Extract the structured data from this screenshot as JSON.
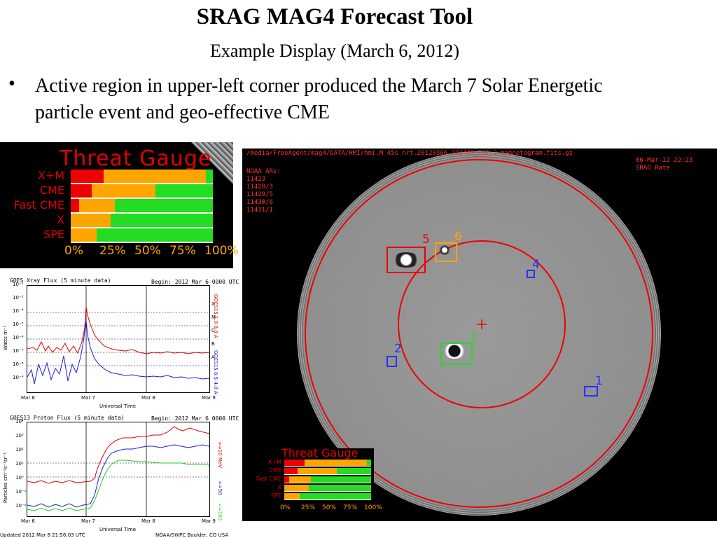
{
  "slide": {
    "title": "SRAG MAG4 Forecast Tool",
    "subtitle": "Example Display (March 6, 2012)",
    "bullet": "Active region in upper-left corner produced the March 7 Solar Energetic particle event and geo-effective CME"
  },
  "threat_gauge": {
    "title": "Threat Gauge",
    "rows": [
      {
        "label": "X+M",
        "red": 0.23,
        "orange": 0.72
      },
      {
        "label": "CME",
        "red": 0.15,
        "orange": 0.45
      },
      {
        "label": "Fast CME",
        "red": 0.06,
        "orange": 0.25
      },
      {
        "label": "X",
        "red": 0.0,
        "orange": 0.28
      },
      {
        "label": "SPE",
        "red": 0.0,
        "orange": 0.18
      }
    ],
    "ticks": [
      "0%",
      "25%",
      "50%",
      "75%",
      "100%"
    ],
    "colors": {
      "red": "#ee0000",
      "orange": "#ffa500",
      "green": "#22dd22"
    }
  },
  "xray_plot": {
    "title": "GOES Xray Flux (5 minute data)",
    "begin": "Begin:  2012 Mar  6 0000 UTC",
    "ylabel": "Watts m⁻²",
    "y_ticks": [
      "10⁻²",
      "10⁻³",
      "10⁻⁴",
      "10⁻⁵",
      "10⁻⁶",
      "10⁻⁷",
      "10⁻⁸",
      "10⁻⁹"
    ],
    "right_letters": [
      "X",
      "M",
      "C",
      "B",
      "A"
    ],
    "series_labels": [
      "GOES15 1.0-8.0 A",
      "GOES15 0.5-4.0 A"
    ],
    "x_ticks": [
      "Mar 6",
      "Mar 7",
      "Mar 8",
      "Mar 9"
    ],
    "xlabel": "Universal Time"
  },
  "proton_plot": {
    "title": "GOES13 Proton Flux (5 minute data)",
    "begin": "Begin:  2012 Mar  6 0000 UTC",
    "ylabel": "Particles cm⁻²s⁻¹sr⁻¹",
    "y_ticks": [
      "10⁴",
      "10³",
      "10²",
      "10¹",
      "10⁰",
      "10⁻¹",
      "10⁻²"
    ],
    "series_labels": [
      ">=10 MeV",
      ">=50",
      ">=100"
    ],
    "x_ticks": [
      "Mar 6",
      "Mar 7",
      "Mar 8",
      "Mar 9"
    ],
    "xlabel": "Universal Time",
    "updated": "Updated 2012 Mar  8 21:56:03 UTC",
    "credit": "NOAA/SWPC Boulder, CO USA"
  },
  "magnetogram": {
    "file": "/media/FreeAgent/mag4/DATA/HMI/hmi.M_45s_nrt.20120306_222445_TAI.2.magnetogram.fits.gz",
    "date": "06-Mar-12 22:23",
    "rate": "SRAG Rate",
    "ars_header": "NOAA ARs:",
    "ars": [
      "11423",
      "11428/3",
      "11429/5",
      "11430/6",
      "11431/1"
    ],
    "regions": [
      {
        "num": "5",
        "color": "#ee0000"
      },
      {
        "num": "6",
        "color": "#ffa500"
      },
      {
        "num": "4",
        "color": "#2233ff"
      },
      {
        "num": "3",
        "color": "#22dd22"
      },
      {
        "num": "2",
        "color": "#2233ff"
      },
      {
        "num": "1",
        "color": "#2233ff"
      }
    ]
  },
  "small_gauge": {
    "title": "Threat Gauge",
    "labels": [
      "X+M",
      "CME",
      "Fast CME",
      "X",
      "SPE"
    ],
    "ticks": [
      "0%",
      "25%",
      "50%",
      "75%",
      "100%"
    ]
  }
}
